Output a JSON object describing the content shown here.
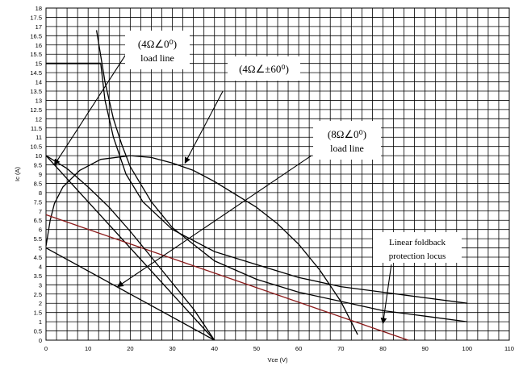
{
  "chart_data": {
    "type": "line",
    "xlabel": "Vce (V)",
    "ylabel": "Ic (A)",
    "xlim": [
      0,
      110
    ],
    "ylim": [
      0,
      18
    ],
    "x_ticks": [
      0,
      10,
      20,
      30,
      40,
      50,
      60,
      70,
      80,
      90,
      100,
      110
    ],
    "y_ticks": [
      0,
      0.5,
      1,
      1.5,
      2,
      2.5,
      3,
      3.5,
      4,
      4.5,
      5,
      5.5,
      6,
      6.5,
      7,
      7.5,
      8,
      8.5,
      9,
      9.5,
      10,
      10.5,
      11,
      11.5,
      12,
      12.5,
      13,
      13.5,
      14,
      14.5,
      15,
      15.5,
      16,
      16.5,
      17,
      17.5,
      18
    ],
    "grid": true,
    "colors": {
      "line": "#000000",
      "locus": "#8b1a1a",
      "grid": "#000000"
    },
    "series": [
      {
        "points": [
          [
            0,
            15
          ],
          [
            13,
            15
          ]
        ]
      },
      {
        "points": [
          [
            13,
            15
          ],
          [
            14,
            13
          ],
          [
            16,
            11
          ],
          [
            19,
            9
          ],
          [
            23,
            7.5
          ],
          [
            30,
            6
          ],
          [
            40,
            4.8
          ],
          [
            50,
            4.1
          ],
          [
            60,
            3.4
          ],
          [
            70,
            2.9
          ],
          [
            80,
            2.6
          ],
          [
            90,
            2.3
          ],
          [
            100,
            2.0
          ]
        ]
      },
      {
        "points": [
          [
            12,
            16.8
          ],
          [
            14,
            14
          ],
          [
            16,
            12
          ],
          [
            18,
            10.6
          ],
          [
            20,
            9.4
          ],
          [
            25,
            7.5
          ],
          [
            30,
            6.1
          ],
          [
            40,
            4.3
          ],
          [
            50,
            3.3
          ],
          [
            60,
            2.6
          ],
          [
            70,
            2.1
          ],
          [
            80,
            1.6
          ],
          [
            90,
            1.3
          ],
          [
            100,
            1.0
          ]
        ]
      },
      {
        "points": [
          [
            0,
            5.1
          ],
          [
            1,
            6.5
          ],
          [
            2,
            7.4
          ],
          [
            4,
            8.3
          ],
          [
            8,
            9.2
          ],
          [
            13,
            9.8
          ],
          [
            20,
            10.0
          ],
          [
            25,
            9.9
          ],
          [
            30,
            9.6
          ],
          [
            35,
            9.2
          ],
          [
            40,
            8.6
          ],
          [
            45,
            7.9
          ],
          [
            50,
            7.2
          ],
          [
            55,
            6.3
          ],
          [
            60,
            5.2
          ],
          [
            65,
            3.8
          ],
          [
            70,
            2.1
          ],
          [
            74,
            0.3
          ]
        ]
      },
      {
        "points": [
          [
            0,
            10
          ],
          [
            40,
            0
          ]
        ]
      },
      {
        "points": [
          [
            0,
            5
          ],
          [
            40,
            0
          ]
        ]
      },
      {
        "points": [
          [
            0,
            6.8
          ],
          [
            86,
            0
          ]
        ]
      },
      {
        "points": [
          [
            0,
            10
          ],
          [
            5,
            9.3
          ],
          [
            10,
            8.3
          ],
          [
            15,
            7.2
          ],
          [
            20,
            5.9
          ],
          [
            25,
            4.5
          ],
          [
            30,
            3.1
          ],
          [
            35,
            1.7
          ],
          [
            40,
            0
          ]
        ]
      }
    ],
    "annotations": [
      {
        "text": "(4Ω∠0⁰)",
        "line2": "load line",
        "pointer_from": [
          19,
          15.5
        ],
        "pointer_to": [
          2,
          9.5
        ]
      },
      {
        "text": "(4Ω∠±60⁰)",
        "line2": "",
        "pointer_from": [
          42,
          13.5
        ],
        "pointer_to": [
          33,
          9.6
        ]
      },
      {
        "text": "(8Ω∠0⁰)",
        "line2": "load line",
        "pointer_from": [
          63,
          10
        ],
        "pointer_to": [
          17,
          2.9
        ]
      },
      {
        "text": "Linear foldback",
        "line2": "protection locus",
        "pointer_from": [
          82,
          4.1
        ],
        "pointer_to": [
          80,
          0.9
        ]
      }
    ]
  }
}
